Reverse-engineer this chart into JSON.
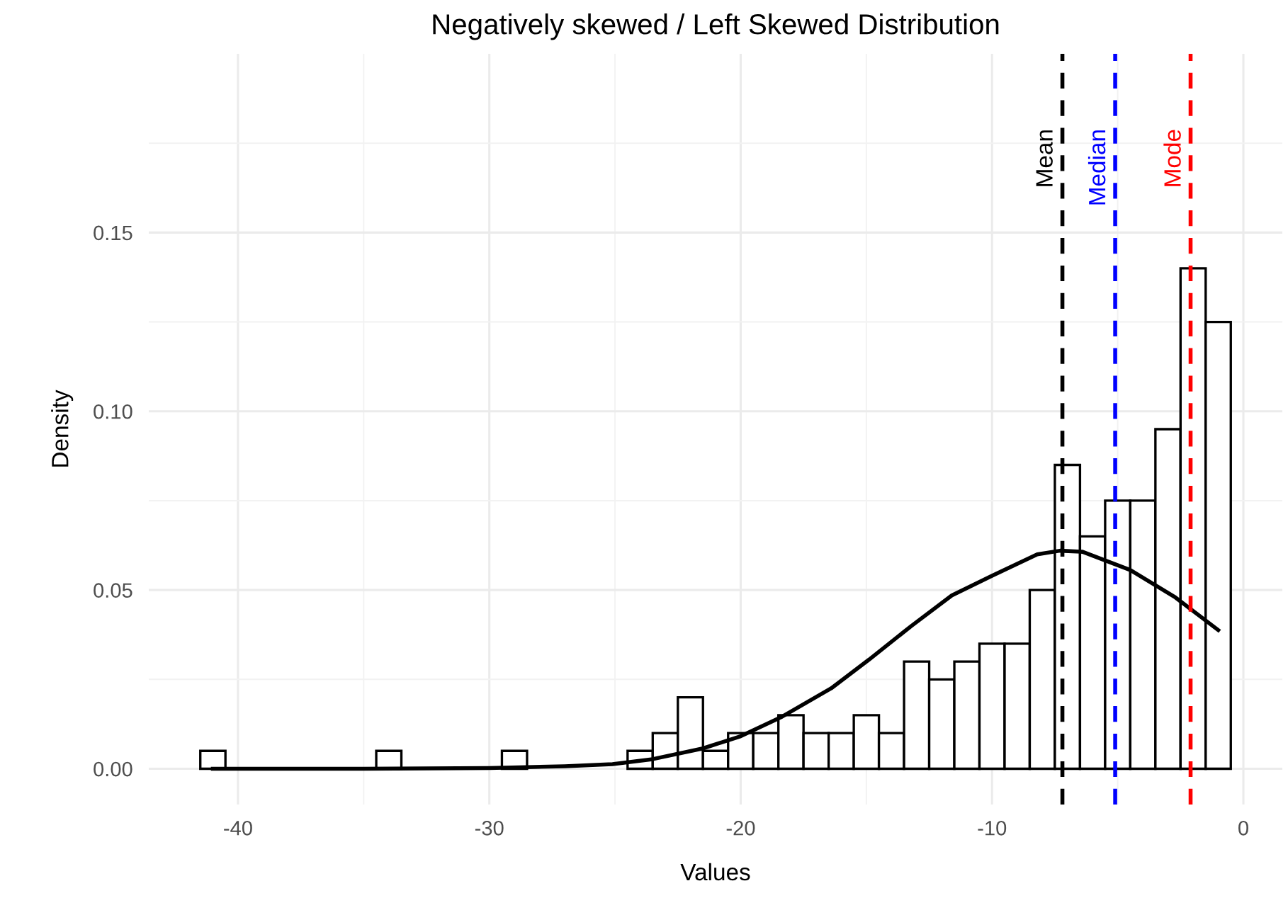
{
  "chart_data": {
    "type": "histogram",
    "title": "Negatively skewed / Left Skewed Distribution",
    "xlabel": "Values",
    "ylabel": "Density",
    "bins": [
      -41.5,
      -40.5,
      -39.5,
      -38.5,
      -37.5,
      -36.5,
      -35.5,
      -34.5,
      -33.5,
      -32.5,
      -31.5,
      -30.5,
      -29.5,
      -28.5,
      -27.5,
      -26.5,
      -25.5,
      -24.5,
      -23.5,
      -22.5,
      -21.5,
      -20.5,
      -19.5,
      -18.5,
      -17.5,
      -16.5,
      -15.5,
      -14.5,
      -13.5,
      -12.5,
      -11.5,
      -10.5,
      -9.5,
      -8.5,
      -7.5,
      -6.5,
      -5.5,
      -4.5,
      -3.5,
      -2.5,
      -1.5,
      -0.5
    ],
    "values": [
      0.005,
      0,
      0,
      0,
      0,
      0,
      0,
      0.005,
      0,
      0,
      0,
      0,
      0.005,
      0,
      0,
      0,
      0,
      0.005,
      0.01,
      0.02,
      0.005,
      0.01,
      0.01,
      0.015,
      0.01,
      0.01,
      0.015,
      0.01,
      0.03,
      0.025,
      0.03,
      0.035,
      0.035,
      0.05,
      0.085,
      0.065,
      0.075,
      0.075,
      0.095,
      0.14,
      0.125
    ],
    "color": "#ffffff",
    "series": [
      {
        "type": "line",
        "color": "#000000",
        "x": [
          -41,
          -35,
          -30,
          -27,
          -25.1,
          -23.5,
          -21.5,
          -20,
          -18.4,
          -16.4,
          -14.9,
          -13.2,
          -11.6,
          -10,
          -8.2,
          -7.3,
          -6.4,
          -4.5,
          -2.7,
          -1
        ],
        "values": [
          0,
          0,
          0.0002,
          0.0007,
          0.0013,
          0.0027,
          0.0057,
          0.0091,
          0.0144,
          0.0225,
          0.0305,
          0.04,
          0.0485,
          0.054,
          0.06,
          0.061,
          0.0607,
          0.0556,
          0.0479,
          0.0388
        ]
      }
    ],
    "ref_lines": [
      {
        "axis": "x",
        "value": -7.2,
        "label": "Mean",
        "color": "#000000",
        "line_style": "dashed"
      },
      {
        "axis": "x",
        "value": -5.1,
        "label": "Median",
        "color": "#0000ff",
        "line_style": "dashed"
      },
      {
        "axis": "x",
        "value": -2.1,
        "label": "Mode",
        "color": "#ff0000",
        "line_style": "dashed"
      }
    ],
    "xlim": [
      -43.55,
      1.55
    ],
    "ylim": [
      -0.01,
      0.2
    ],
    "xticks": [
      -40,
      -30,
      -20,
      -10,
      0
    ],
    "yticks": [
      {
        "value": 0,
        "label": "0.00"
      },
      {
        "value": 0.05,
        "label": "0.05"
      },
      {
        "value": 0.1,
        "label": "0.10"
      },
      {
        "value": 0.15,
        "label": "0.15"
      }
    ],
    "grid": true
  }
}
